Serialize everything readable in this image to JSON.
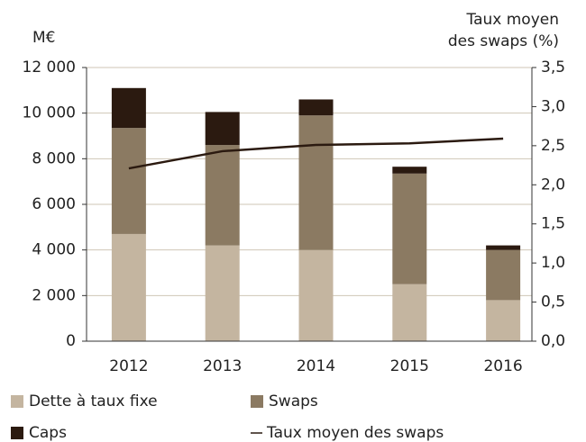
{
  "chart_data": {
    "type": "bar",
    "y_label": "M€",
    "y2_label": [
      "Taux moyen",
      "des swaps (%)"
    ],
    "categories": [
      "2012",
      "2013",
      "2014",
      "2015",
      "2016"
    ],
    "stacked": true,
    "series": [
      {
        "name": "Dette à taux fixe",
        "color": "#c4b5a0",
        "values": [
          4700,
          4200,
          4000,
          2500,
          1800
        ]
      },
      {
        "name": "Swaps",
        "color": "#8b7a62",
        "values": [
          4650,
          4400,
          5900,
          4850,
          2200
        ]
      },
      {
        "name": "Caps",
        "color": "#2b1a10",
        "values": [
          1750,
          1450,
          700,
          300,
          200
        ]
      },
      {
        "name": "Taux moyen des swaps",
        "type": "line",
        "axis": "y2",
        "color": "#2b1a10",
        "values": [
          2.21,
          2.43,
          2.51,
          2.53,
          2.59
        ]
      }
    ],
    "ylim": [
      0,
      12000
    ],
    "yticks": [
      0,
      {
        "value": 2000,
        "label": "2 000"
      },
      {
        "value": 4000,
        "label": "4 000"
      },
      {
        "value": 6000,
        "label": "6 000"
      },
      {
        "value": 8000,
        "label": "8 000"
      },
      {
        "value": 10000,
        "label": "10 000"
      },
      {
        "value": 12000,
        "label": "12 000"
      }
    ],
    "y2lim": [
      0,
      3.5
    ],
    "y2ticks": [
      {
        "value": 0,
        "label": "0,0"
      },
      {
        "value": 0.5,
        "label": "0,5"
      },
      {
        "value": 1,
        "label": "1,0"
      },
      {
        "value": 1.5,
        "label": "1,5"
      },
      {
        "value": 2,
        "label": "2,0"
      },
      {
        "value": 2.5,
        "label": "2,5"
      },
      {
        "value": 3,
        "label": "3,0"
      },
      {
        "value": 3.5,
        "label": "3,5"
      }
    ],
    "grid": true
  }
}
